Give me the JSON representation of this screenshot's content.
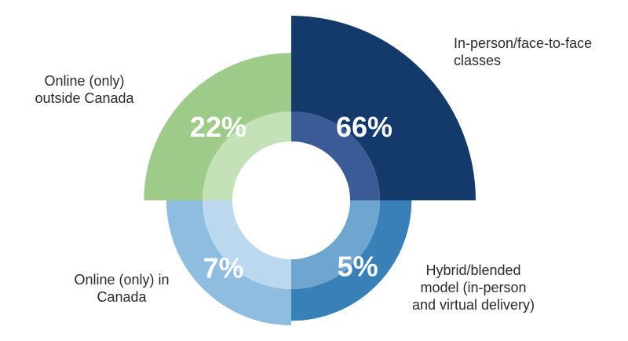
{
  "chart_data": {
    "type": "pie",
    "variant": "polar-area donut",
    "title": "",
    "start_angle_deg": 0,
    "direction": "clockwise",
    "categories": [
      {
        "name": "In-person/face-to-face classes",
        "lines": [
          "In-person/face-to-face",
          "classes"
        ],
        "value": 66,
        "label": "66%",
        "color": "#143a6b",
        "ring_color": "#3a5b95"
      },
      {
        "name": "Hybrid/blended model (in-person and virtual delivery)",
        "lines": [
          "Hybrid/blended",
          "model (in-person",
          "and virtual delivery)"
        ],
        "value": 5,
        "label": "5%",
        "color": "#3a80b8",
        "ring_color": "#6ea6cf"
      },
      {
        "name": "Online (only) in Canada",
        "lines": [
          "Online (only) in",
          "Canada"
        ],
        "value": 7,
        "label": "7%",
        "color": "#8fbde0",
        "ring_color": "#bbd8ee"
      },
      {
        "name": "Online (only) outside Canada",
        "lines": [
          "Online (only)",
          "outside Canada"
        ],
        "value": 22,
        "label": "22%",
        "color": "#9ecb8a",
        "ring_color": "#c5e1b8"
      }
    ]
  }
}
